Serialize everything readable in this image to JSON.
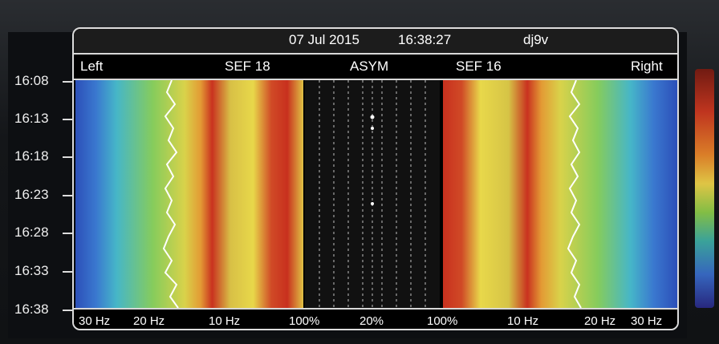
{
  "header": {
    "date": "07 Jul 2015",
    "time": "16:38:27",
    "user": "dj9v"
  },
  "labels": {
    "left": "Left",
    "sef_left": "SEF 18",
    "asym": "ASYM",
    "sef_right": "SEF 16",
    "right": "Right"
  },
  "time_axis": [
    "16:08",
    "16:13",
    "16:18",
    "16:23",
    "16:28",
    "16:33",
    "16:38"
  ],
  "bottom_axis": {
    "l30": "30 Hz",
    "l20": "20 Hz",
    "l10": "10 Hz",
    "p100a": "100%",
    "p20": "20%",
    "p100b": "100%",
    "r10": "10 Hz",
    "r20": "20 Hz",
    "r30": "30 Hz"
  },
  "colors": {
    "blue": "#2f5fc8",
    "cyan": "#43b9c6",
    "green": "#8bcf59",
    "yellow": "#e8d544",
    "red": "#c8331e"
  }
}
